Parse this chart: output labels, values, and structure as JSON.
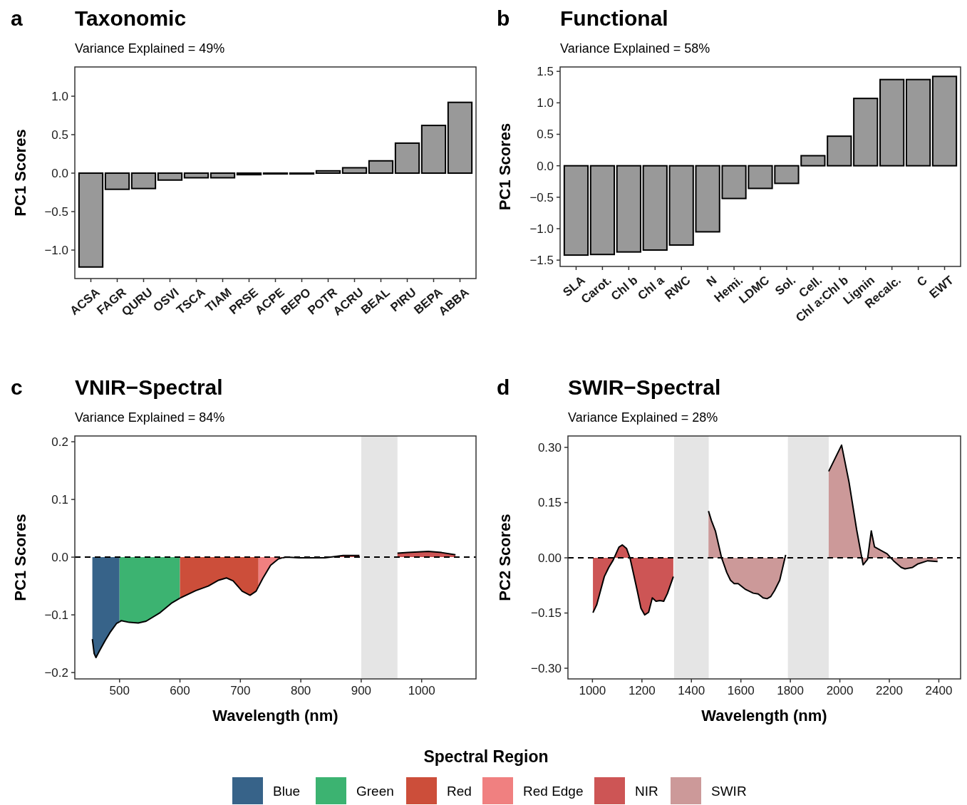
{
  "chart_data": [
    {
      "type": "bar",
      "title": "Taxonomic",
      "subtitle": "Variance Explained = 49%",
      "ylabel": "PC1 Scores",
      "annotations": [
        "a"
      ],
      "categories": [
        "ACSA",
        "FAGR",
        "QURU",
        "OSVI",
        "TSCA",
        "TIAM",
        "PRSE",
        "ACPE",
        "BEPO",
        "POTR",
        "ACRU",
        "BEAL",
        "PIRU",
        "BEPA",
        "ABBA"
      ],
      "values": [
        -1.22,
        -0.21,
        -0.2,
        -0.09,
        -0.06,
        -0.06,
        -0.02,
        -0.01,
        -0.01,
        0.03,
        0.07,
        0.16,
        0.39,
        0.62,
        0.92
      ],
      "color": "#999999",
      "ylim": [
        -1.37,
        1.38
      ],
      "yticks": [
        {
          "value": -1,
          "label": "−1.0"
        },
        {
          "value": -0.5,
          "label": "−0.5"
        },
        {
          "value": 0,
          "label": "0.0"
        },
        {
          "value": 0.5,
          "label": "0.5"
        },
        {
          "value": 1,
          "label": "1.0"
        }
      ],
      "grid": false,
      "legend": false
    },
    {
      "type": "bar",
      "title": "Functional",
      "subtitle": "Variance Explained = 58%",
      "ylabel": "PC1 Scores",
      "annotations": [
        "b"
      ],
      "categories": [
        "SLA",
        "Carot.",
        "Chl b",
        "Chl a",
        "RWC",
        "N",
        "Hemi.",
        "LDMC",
        "Sol.",
        "Cell.",
        "Chl a:Chl b",
        "Lignin",
        "Recalc.",
        "C",
        "EWT"
      ],
      "values": [
        -1.42,
        -1.41,
        -1.37,
        -1.34,
        -1.26,
        -1.05,
        -0.52,
        -0.36,
        -0.28,
        0.16,
        0.47,
        1.07,
        1.37,
        1.37,
        1.42
      ],
      "color": "#999999",
      "ylim": [
        -1.6,
        1.57
      ],
      "yticks": [
        {
          "value": -1.5,
          "label": "−1.5"
        },
        {
          "value": -1,
          "label": "−1.0"
        },
        {
          "value": -0.5,
          "label": "−0.5"
        },
        {
          "value": 0,
          "label": "0.0"
        },
        {
          "value": 0.5,
          "label": "0.5"
        },
        {
          "value": 1,
          "label": "1.0"
        },
        {
          "value": 1.5,
          "label": "1.5"
        }
      ],
      "grid": false,
      "legend": false
    },
    {
      "type": "area",
      "title": "VNIR−Spectral",
      "subtitle": "Variance Explained = 84%",
      "xlabel": "Wavelength (nm)",
      "ylabel": "PC1 Scores",
      "annotations": [
        "c"
      ],
      "legend": "bottom",
      "line_style": "solid",
      "legend_title": "Spectral Region",
      "grid": false,
      "xlim": [
        426,
        1090
      ],
      "xticks": [
        500,
        600,
        700,
        800,
        900,
        1000
      ],
      "ylim": [
        -0.211,
        0.21
      ],
      "yticks": [
        {
          "value": -0.2,
          "label": "−0.2"
        },
        {
          "value": -0.1,
          "label": "−0.1"
        },
        {
          "value": 0,
          "label": "0.0"
        },
        {
          "value": 0.1,
          "label": "0.1"
        },
        {
          "value": 0.2,
          "label": "0.2"
        }
      ],
      "ref_lines": [
        {
          "axis": "y",
          "value": 0,
          "color": "#000000",
          "line_style": "dashed"
        }
      ],
      "bands": [
        {
          "axis": "x",
          "from": 900,
          "to": 960,
          "color": "#e5e5e5"
        }
      ],
      "series": [
        {
          "name": "Blue",
          "color": "#376389",
          "x": [
            455,
            458,
            461,
            467,
            476,
            484,
            495,
            500
          ],
          "values": [
            -0.142,
            -0.167,
            -0.174,
            -0.162,
            -0.145,
            -0.131,
            -0.115,
            -0.112
          ]
        },
        {
          "name": "Green",
          "color": "#3cb371",
          "x": [
            500,
            503,
            516,
            531,
            544,
            566,
            587,
            600
          ],
          "values": [
            -0.112,
            -0.11,
            -0.113,
            -0.114,
            -0.111,
            -0.097,
            -0.079,
            -0.071
          ]
        },
        {
          "name": "Red",
          "color": "#cc4e3a",
          "x": [
            600,
            626,
            647,
            664,
            677,
            688,
            703,
            716,
            726,
            730
          ],
          "values": [
            -0.071,
            -0.058,
            -0.05,
            -0.04,
            -0.036,
            -0.041,
            -0.059,
            -0.066,
            -0.059,
            -0.051
          ]
        },
        {
          "name": "Red Edge",
          "color": "#f08080",
          "x": [
            730,
            737,
            750,
            763,
            770
          ],
          "values": [
            -0.051,
            -0.037,
            -0.014,
            -0.003,
            -0.001
          ]
        },
        {
          "name": "NIR",
          "color": "#cd5555",
          "x": [
            770,
            776,
            797,
            840,
            870,
            897
          ],
          "values": [
            -0.001,
            0,
            -0.001,
            -0.001,
            0.003,
            0.003
          ]
        },
        {
          "color": "#cd5555",
          "x": [
            960,
            977,
            1011,
            1033,
            1056
          ],
          "values": [
            0.007,
            0.008,
            0.01,
            0.008,
            0.004
          ]
        }
      ]
    },
    {
      "type": "area",
      "title": "SWIR−Spectral",
      "subtitle": "Variance Explained = 28%",
      "xlabel": "Wavelength (nm)",
      "ylabel": "PC2 Scores",
      "annotations": [
        "d"
      ],
      "legend": "bottom",
      "line_style": "solid",
      "grid": false,
      "xlim": [
        901,
        2488
      ],
      "xticks": [
        1000,
        1200,
        1400,
        1600,
        1800,
        2000,
        2200,
        2400
      ],
      "ylim": [
        -0.329,
        0.331
      ],
      "yticks": [
        {
          "value": -0.3,
          "label": "−0.30"
        },
        {
          "value": -0.15,
          "label": "−0.15"
        },
        {
          "value": 0,
          "label": "0.00"
        },
        {
          "value": 0.15,
          "label": "0.15"
        },
        {
          "value": 0.3,
          "label": "0.30"
        }
      ],
      "ref_lines": [
        {
          "axis": "y",
          "value": 0,
          "color": "#000000",
          "line_style": "dashed"
        }
      ],
      "bands": [
        {
          "axis": "x",
          "from": 1330,
          "to": 1470,
          "color": "#e5e5e5"
        },
        {
          "axis": "x",
          "from": 1790,
          "to": 1955,
          "color": "#e5e5e5"
        }
      ],
      "series": [
        {
          "name": "NIR",
          "color": "#cd5555",
          "x": [
            1002,
            1017,
            1048,
            1066,
            1084,
            1107,
            1121,
            1138,
            1152,
            1165,
            1181,
            1196,
            1211,
            1227,
            1242,
            1257,
            1273,
            1288,
            1303,
            1327
          ],
          "values": [
            -0.149,
            -0.128,
            -0.051,
            -0.026,
            -0.006,
            0.029,
            0.035,
            0.025,
            -0.001,
            -0.04,
            -0.089,
            -0.137,
            -0.155,
            -0.148,
            -0.109,
            -0.118,
            -0.116,
            -0.118,
            -0.097,
            -0.051
          ]
        },
        {
          "name": "SWIR",
          "color": "#cc9999",
          "x": [
            1469,
            1481,
            1497,
            1522,
            1543,
            1558,
            1573,
            1589,
            1619,
            1650,
            1670,
            1690,
            1706,
            1721,
            1736,
            1757,
            1781
          ],
          "values": [
            0.127,
            0.101,
            0.073,
            0,
            -0.04,
            -0.061,
            -0.07,
            -0.07,
            -0.086,
            -0.096,
            -0.098,
            -0.109,
            -0.111,
            -0.105,
            -0.089,
            -0.061,
            0.008
          ]
        },
        {
          "color": "#cc9999",
          "x": [
            1955,
            2007,
            2037,
            2068,
            2094,
            2112,
            2127,
            2140,
            2166,
            2191,
            2217,
            2248,
            2263,
            2294,
            2314,
            2355,
            2395
          ],
          "values": [
            0.235,
            0.306,
            0.206,
            0.076,
            -0.019,
            -0.004,
            0.073,
            0.03,
            0.02,
            0.011,
            -0.008,
            -0.026,
            -0.03,
            -0.026,
            -0.017,
            -0.008,
            -0.01
          ]
        }
      ]
    }
  ]
}
